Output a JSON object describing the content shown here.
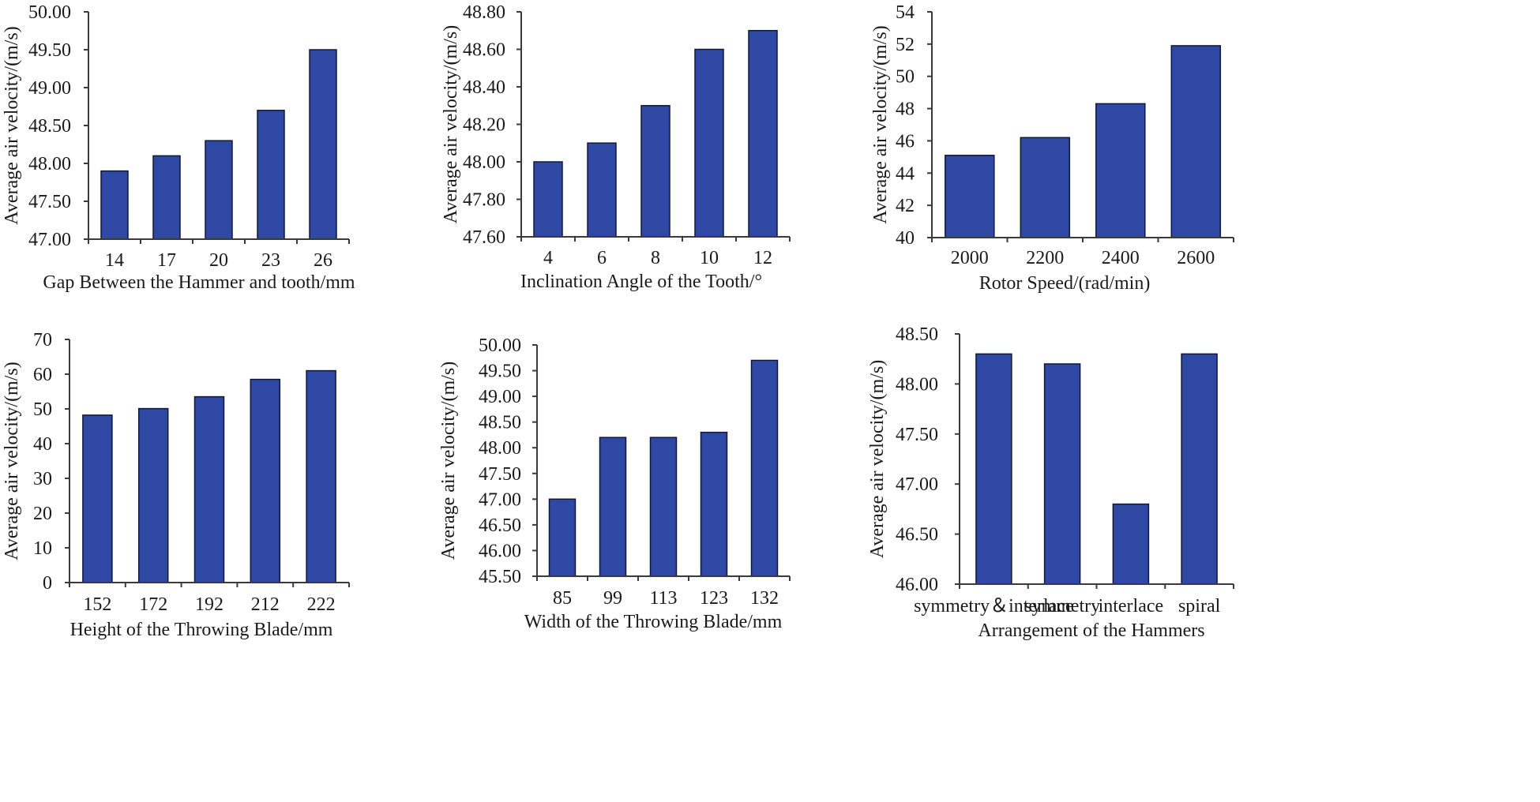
{
  "colors": {
    "bar": "#2e48a3",
    "axis": "#3a3a3a",
    "text": "#1a1a1a"
  },
  "chart_data": [
    {
      "type": "bar",
      "title": "",
      "xlabel": "Gap Between the Hammer and tooth/mm",
      "ylabel": "Average  air velocity/(m/s)",
      "categories": [
        "14",
        "17",
        "20",
        "23",
        "26"
      ],
      "values": [
        47.9,
        48.1,
        48.3,
        48.7,
        49.5
      ],
      "ylim": [
        47.0,
        50.0
      ],
      "yticks": [
        47.0,
        47.5,
        48.0,
        48.5,
        49.0,
        49.5,
        50.0
      ],
      "ytick_labels": [
        "47.00",
        "47.50",
        "48.00",
        "48.50",
        "49.00",
        "49.50",
        "50.00"
      ],
      "grid": false
    },
    {
      "type": "bar",
      "title": "",
      "xlabel": "Inclination Angle of the Tooth/°",
      "ylabel": "Average  air velocity/(m/s)",
      "categories": [
        "4",
        "6",
        "8",
        "10",
        "12"
      ],
      "values": [
        48.0,
        48.1,
        48.3,
        48.6,
        48.7
      ],
      "ylim": [
        47.6,
        48.8
      ],
      "yticks": [
        47.6,
        47.8,
        48.0,
        48.2,
        48.4,
        48.6,
        48.8
      ],
      "ytick_labels": [
        "47.60",
        "47.80",
        "48.00",
        "48.20",
        "48.40",
        "48.60",
        "48.80"
      ],
      "grid": false
    },
    {
      "type": "bar",
      "title": "",
      "xlabel": "Rotor Speed/(rad/min)",
      "ylabel": "Average  air velocity/(m/s)",
      "categories": [
        "2000",
        "2200",
        "2400",
        "2600"
      ],
      "values": [
        45.1,
        46.2,
        48.3,
        51.9
      ],
      "ylim": [
        40,
        54
      ],
      "yticks": [
        40,
        42,
        44,
        46,
        48,
        50,
        52,
        54
      ],
      "ytick_labels": [
        "40",
        "42",
        "44",
        "46",
        "48",
        "50",
        "52",
        "54"
      ],
      "grid": false
    },
    {
      "type": "bar",
      "title": "",
      "xlabel": "Height of the Throwing Blade/mm",
      "ylabel": "Average  air velocity/(m/s)",
      "categories": [
        "152",
        "172",
        "192",
        "212",
        "222"
      ],
      "values": [
        48.2,
        50.1,
        53.5,
        58.5,
        61.0
      ],
      "ylim": [
        0,
        70
      ],
      "yticks": [
        0,
        10,
        20,
        30,
        40,
        50,
        60,
        70
      ],
      "ytick_labels": [
        "0",
        "10",
        "20",
        "30",
        "40",
        "50",
        "60",
        "70"
      ],
      "grid": false
    },
    {
      "type": "bar",
      "title": "",
      "xlabel": "Width of the Throwing Blade/mm",
      "ylabel": "Average  air velocity/(m/s)",
      "categories": [
        "85",
        "99",
        "113",
        "123",
        "132"
      ],
      "values": [
        47.0,
        48.2,
        48.2,
        48.3,
        49.7
      ],
      "ylim": [
        45.5,
        50.0
      ],
      "yticks": [
        45.5,
        46.0,
        46.5,
        47.0,
        47.5,
        48.0,
        48.5,
        49.0,
        49.5,
        50.0
      ],
      "ytick_labels": [
        "45.50",
        "46.00",
        "46.50",
        "47.00",
        "47.50",
        "48.00",
        "48.50",
        "49.00",
        "49.50",
        "50.00"
      ],
      "grid": false
    },
    {
      "type": "bar",
      "title": "",
      "xlabel": "Arrangement of the Hammers",
      "ylabel": "Average  air velocity/(m/s)",
      "categories": [
        "symmetry＆interlace",
        "symmetry",
        "interlace",
        "spiral"
      ],
      "values": [
        48.3,
        48.2,
        46.8,
        48.3
      ],
      "ylim": [
        46.0,
        48.5
      ],
      "yticks": [
        46.0,
        46.5,
        47.0,
        47.5,
        48.0,
        48.5
      ],
      "ytick_labels": [
        "46.00",
        "46.50",
        "47.00",
        "47.50",
        "48.00",
        "48.50"
      ],
      "grid": false
    }
  ]
}
